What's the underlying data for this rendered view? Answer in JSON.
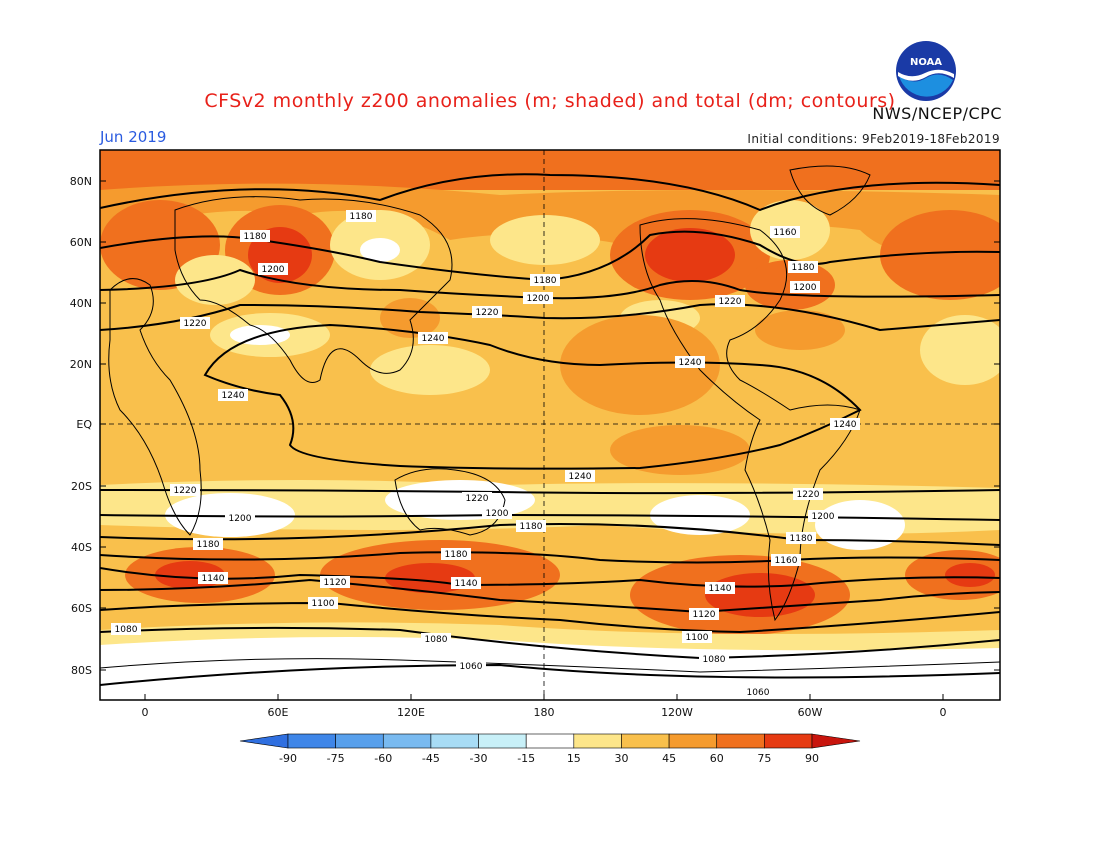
{
  "header": {
    "title": "CFSv2 monthly z200 anomalies (m; shaded) and total (dm; contours)",
    "agency": "NWS/NCEP/CPC",
    "month": "Jun 2019",
    "initial_conditions": "Initial conditions: 9Feb2019-18Feb2019",
    "logo_text": "NOAA"
  },
  "axes": {
    "lat_labels": [
      "80N",
      "60N",
      "40N",
      "20N",
      "EQ",
      "20S",
      "40S",
      "60S",
      "80S"
    ],
    "lon_labels": [
      "0",
      "60E",
      "120E",
      "180",
      "120W",
      "60W",
      "0"
    ]
  },
  "contours": {
    "labels": [
      "1180",
      "1200",
      "1220",
      "1240",
      "1160",
      "1080",
      "1060",
      "1100",
      "1120",
      "1140"
    ]
  },
  "colorbar": {
    "ticks": [
      "-90",
      "-75",
      "-60",
      "-45",
      "-30",
      "-15",
      "15",
      "30",
      "45",
      "60",
      "75",
      "90"
    ],
    "colors": [
      "#2f6fe0",
      "#3f86e8",
      "#58a0ec",
      "#79baf0",
      "#a8dcf5",
      "#c8f0f8",
      "#ffffff",
      "#fde68a",
      "#f9c04c",
      "#f59b2e",
      "#f0701e",
      "#e63a12",
      "#c8150d"
    ]
  },
  "colors": {
    "title": "#e8211a",
    "month": "#2a5be0",
    "land_outline": "#000000",
    "contour": "#000000"
  }
}
